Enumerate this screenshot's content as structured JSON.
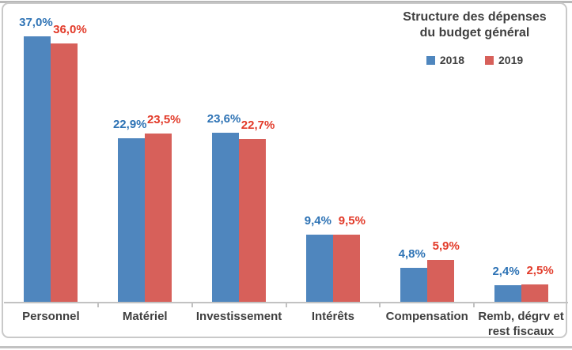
{
  "header": {
    "title_line1": "Structure des dépenses",
    "title_line2": "du budget général"
  },
  "chart_data": {
    "type": "bar",
    "title": "Structure des dépenses du budget général",
    "categories": [
      "Personnel",
      "Matériel",
      "Investissement",
      "Intérêts",
      "Compensation",
      "Remb, dégrv et rest fiscaux"
    ],
    "series": [
      {
        "name": "2018",
        "color": "#4F86BE",
        "label_color": "#2E73B5",
        "values": [
          37.0,
          22.9,
          23.6,
          9.4,
          4.8,
          2.4
        ],
        "value_labels": [
          "37,0%",
          "22,9%",
          "23,6%",
          "9,4%",
          "4,8%",
          "2,4%"
        ]
      },
      {
        "name": "2019",
        "color": "#D7605A",
        "label_color": "#E23A29",
        "values": [
          36.0,
          23.5,
          22.7,
          9.5,
          5.9,
          2.5
        ],
        "value_labels": [
          "36,0%",
          "23,5%",
          "22,7%",
          "9,5%",
          "5,9%",
          "2,5%"
        ]
      }
    ],
    "ylim": [
      0,
      40
    ],
    "grid": false,
    "y_axis_visible": false,
    "value_labels_visible": true,
    "legend_position": "top-right"
  },
  "colors": {
    "text": "#3F3F3F",
    "axis_line": "#C2C2C2",
    "frame_border": "#C9C9C9",
    "background": "#FFFFFF"
  }
}
